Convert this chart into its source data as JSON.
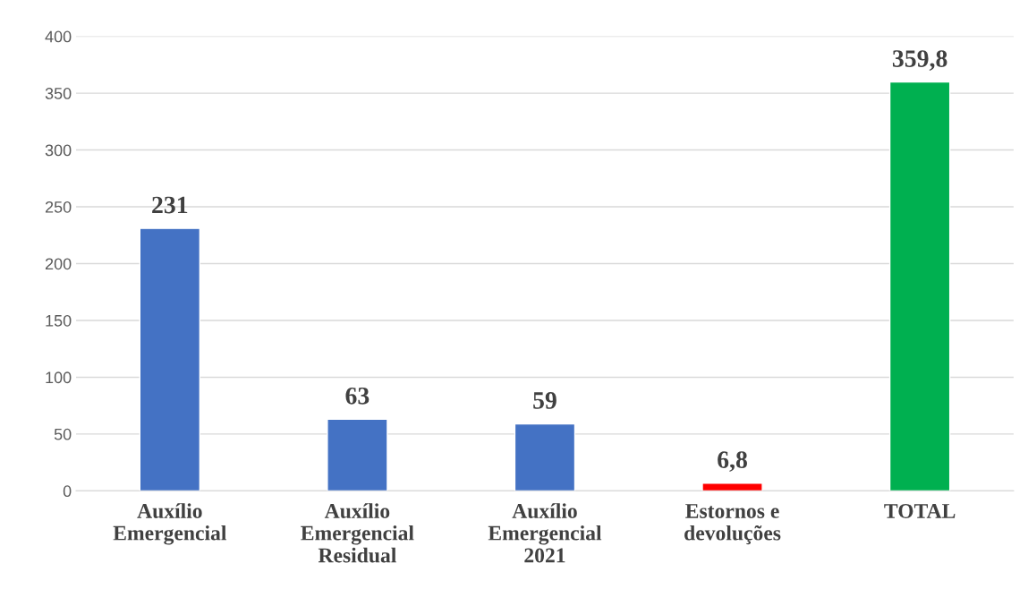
{
  "chart_data": {
    "type": "bar",
    "categories": [
      "Auxílio\nEmergencial",
      "Auxílio\nEmergencial\nResidual",
      "Auxílio\nEmergencial\n2021",
      "Estornos e\ndevoluções",
      "TOTAL"
    ],
    "values": [
      231,
      63,
      59,
      6.8,
      359.8
    ],
    "colors": [
      "#4472c4",
      "#4472c4",
      "#4472c4",
      "#ff0000",
      "#00b050"
    ],
    "value_labels": [
      "231",
      "63",
      "59",
      "6,8",
      "359,8"
    ],
    "ylim": [
      0,
      400
    ],
    "yticks": [
      0,
      50,
      100,
      150,
      200,
      250,
      300,
      350,
      400
    ],
    "grid": "y",
    "legend": false
  }
}
